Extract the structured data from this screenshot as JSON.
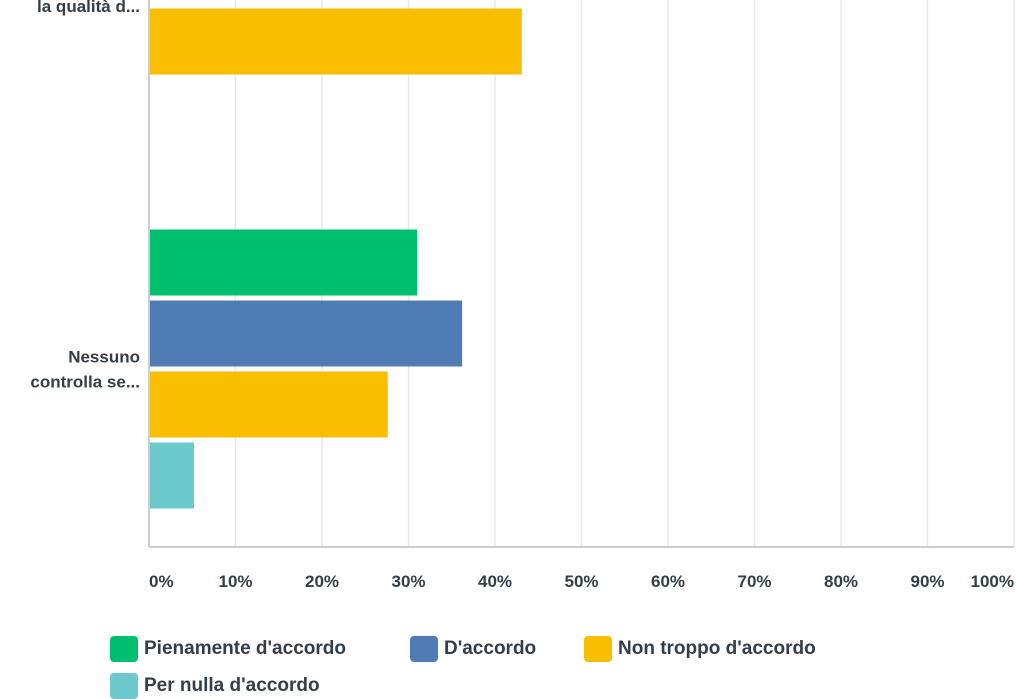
{
  "chart_data": {
    "type": "bar",
    "orientation": "horizontal",
    "categories": [
      "la qualità d...",
      "Nessuno controlla se..."
    ],
    "category_label_lines": [
      [
        "la qualità d..."
      ],
      [
        "Nessuno",
        "controlla se..."
      ]
    ],
    "series": [
      {
        "name": "Pienamente d'accordo",
        "color": "#00bf6f",
        "values": [
          null,
          31
        ]
      },
      {
        "name": "D'accordo",
        "color": "#507cb6",
        "values": [
          null,
          36.2
        ]
      },
      {
        "name": "Non troppo d'accordo",
        "color": "#f9be00",
        "values": [
          43.1,
          27.6
        ]
      },
      {
        "name": "Per nulla d'accordo",
        "color": "#6bc8cd",
        "values": [
          null,
          5.2
        ]
      }
    ],
    "xlim": [
      0,
      100
    ],
    "x_ticks": [
      "0%",
      "10%",
      "20%",
      "30%",
      "40%",
      "50%",
      "60%",
      "70%",
      "80%",
      "90%",
      "100%"
    ],
    "grid": true,
    "legend_position": "bottom"
  }
}
